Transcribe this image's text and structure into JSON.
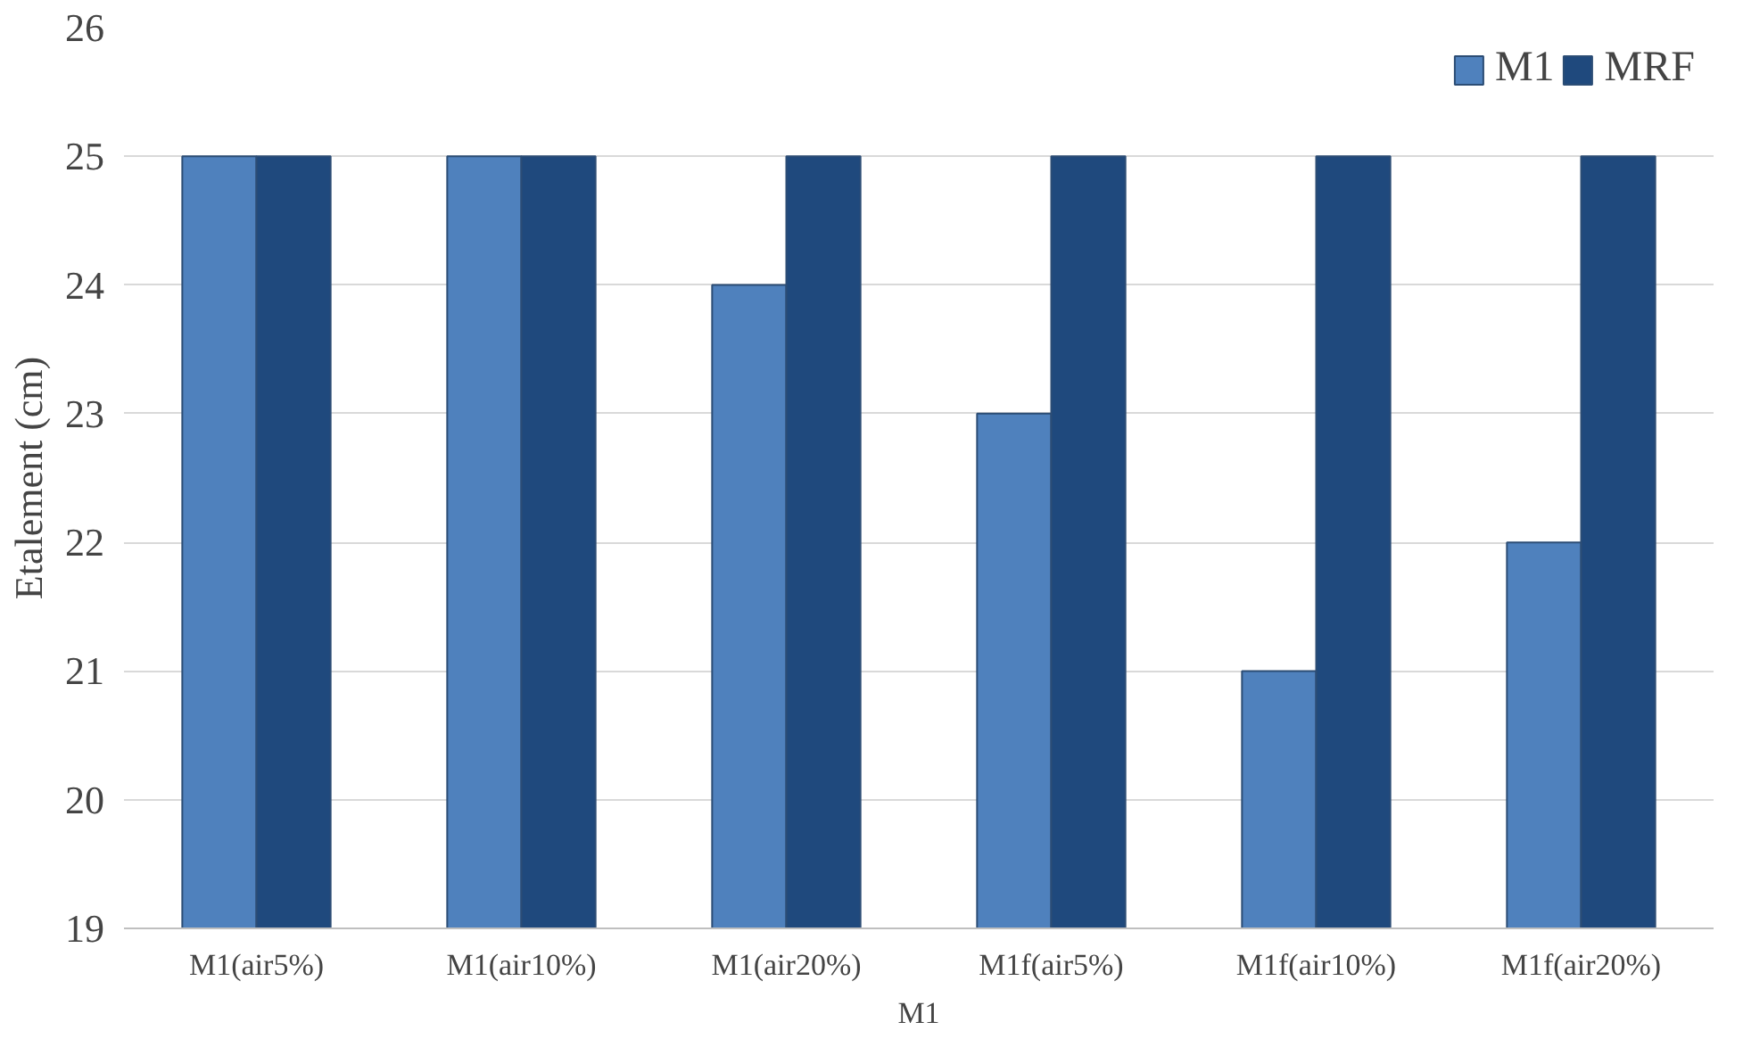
{
  "chart_data": {
    "type": "bar",
    "ylabel": "Etalement (cm)",
    "xlabel": "M1",
    "categories": [
      "M1(air5%)",
      "M1(air10%)",
      "M1(air20%)",
      "M1f(air5%)",
      "M1f(air10%)",
      "M1f(air20%)"
    ],
    "series": [
      {
        "name": "M1",
        "color": "#4f81bd",
        "values": [
          25,
          25,
          24,
          23,
          21,
          22
        ]
      },
      {
        "name": "MRF",
        "color": "#1f497d",
        "values": [
          25,
          25,
          25,
          25,
          25,
          25
        ]
      }
    ],
    "ylim": [
      19,
      26
    ],
    "yticks": [
      19,
      20,
      21,
      22,
      23,
      24,
      25,
      26
    ],
    "grid": "y",
    "legend": "top right"
  }
}
